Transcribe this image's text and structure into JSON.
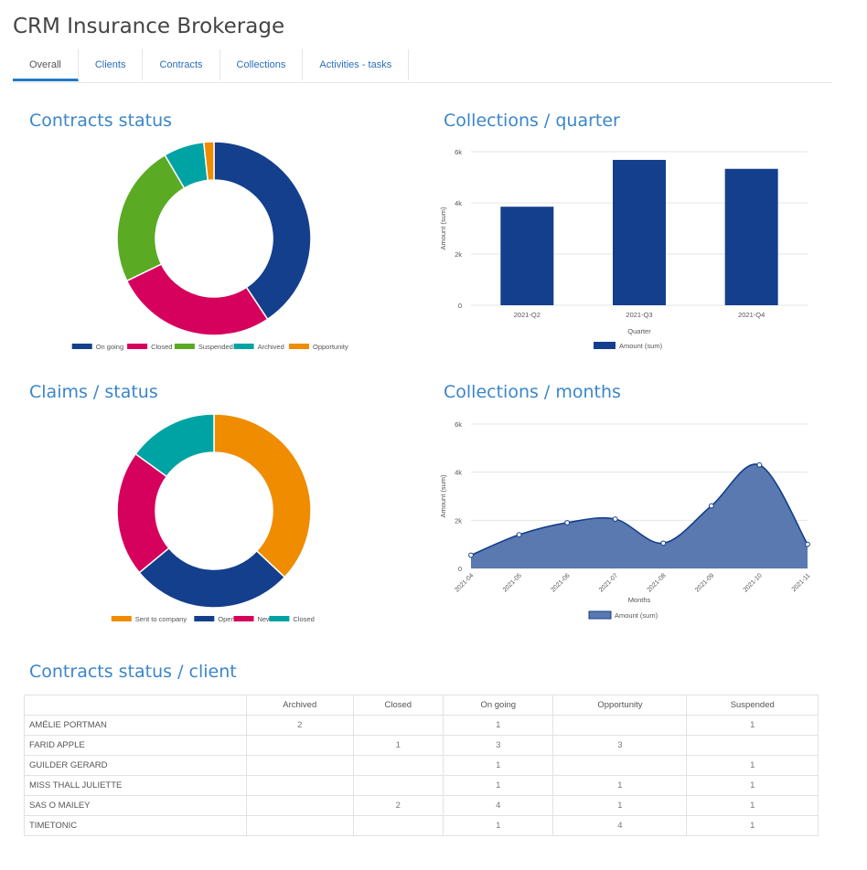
{
  "app": {
    "title": "CRM Insurance Brokerage"
  },
  "tabs": [
    {
      "label": "Overall",
      "active": true
    },
    {
      "label": "Clients"
    },
    {
      "label": "Contracts"
    },
    {
      "label": "Collections"
    },
    {
      "label": "Activities - tasks"
    }
  ],
  "colors": {
    "accent": "#1f7ac8",
    "navy": "#143f8c",
    "pink": "#d6005d",
    "green": "#5aaa24",
    "teal": "#00a3a3",
    "orange": "#ef8c00",
    "area": "#5a79b0"
  },
  "sections": {
    "contracts_status": "Contracts status",
    "collections_quarter": "Collections / quarter",
    "claims_status": "Claims / status",
    "collections_months": "Collections / months",
    "contracts_client": "Contracts status / client"
  },
  "chart_data": [
    {
      "type": "pie",
      "variant": "donut",
      "labels": [
        "On going",
        "Closed",
        "Suspended",
        "Archived",
        "Opportunity"
      ],
      "values": [
        12,
        8,
        7,
        2,
        0.5
      ],
      "colors": [
        "#143f8c",
        "#d6005d",
        "#5aaa24",
        "#00a3a3",
        "#ef8c00"
      ],
      "legend": "bottom"
    },
    {
      "type": "bar",
      "categories": [
        "2021-Q2",
        "2021-Q3",
        "2021-Q4"
      ],
      "series": [
        {
          "name": "Amount (sum)",
          "values": [
            3850,
            5680,
            5330
          ]
        }
      ],
      "xlabel": "Quarter",
      "ylabel": "Amount (sum)",
      "ylim": [
        0,
        6000
      ],
      "yticks": [
        "0",
        "2k",
        "4k",
        "6k"
      ],
      "grid": true,
      "legend": "bottom"
    },
    {
      "type": "pie",
      "variant": "donut",
      "labels": [
        "Sent to company",
        "Open",
        "New",
        "Closed"
      ],
      "values": [
        37,
        27,
        21,
        15
      ],
      "colors": [
        "#ef8c00",
        "#143f8c",
        "#d6005d",
        "#00a3a3"
      ],
      "legend": "bottom"
    },
    {
      "type": "area",
      "categories": [
        "2021-04",
        "2021-05",
        "2021-06",
        "2021-07",
        "2021-08",
        "2021-09",
        "2021-10",
        "2021-11"
      ],
      "series": [
        {
          "name": "Amount (sum)",
          "values": [
            550,
            1400,
            1900,
            2050,
            1050,
            2600,
            4300,
            1000
          ]
        }
      ],
      "xlabel": "Months",
      "ylabel": "Amount (sum)",
      "ylim": [
        0,
        6000
      ],
      "yticks": [
        "0",
        "2k",
        "4k",
        "6k"
      ],
      "grid": true,
      "legend": "bottom"
    }
  ],
  "table": {
    "columns": [
      "",
      "Archived",
      "Closed",
      "On going",
      "Opportunity",
      "Suspended"
    ],
    "rows": [
      [
        "AMÉLIE PORTMAN",
        "2",
        "",
        "1",
        "",
        "1"
      ],
      [
        "FARID APPLE",
        "",
        "1",
        "3",
        "3",
        ""
      ],
      [
        "GUILDER GERARD",
        "",
        "",
        "1",
        "",
        "1"
      ],
      [
        "MISS THALL JULIETTE",
        "",
        "",
        "1",
        "1",
        "1"
      ],
      [
        "SAS O MAILEY",
        "",
        "2",
        "4",
        "1",
        "1"
      ],
      [
        "TIMETONIC",
        "",
        "",
        "1",
        "4",
        "1"
      ]
    ]
  }
}
